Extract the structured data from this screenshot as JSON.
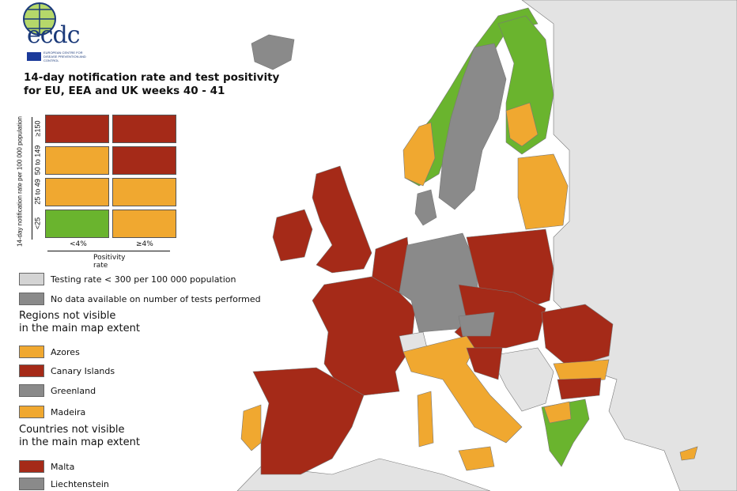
{
  "logo": {
    "text": "ecdc",
    "subtitle": "EUROPEAN CENTRE FOR DISEASE PREVENTION AND CONTROL"
  },
  "title_line1": "14-day notification rate and test positivity",
  "title_line2": "for EU, EEA and UK weeks 40 - 41",
  "matrix": {
    "y_axis_label": "14-day notification rate per 100 000 population",
    "x_axis_label": "Positivity rate",
    "rows": [
      "≥150",
      "50 to 149",
      "25 to 49",
      "<25"
    ],
    "cols": [
      "<4%",
      "≥4%"
    ],
    "colors": [
      [
        "#a52a18",
        "#a52a18"
      ],
      [
        "#f0a830",
        "#a52a18"
      ],
      [
        "#f0a830",
        "#f0a830"
      ],
      [
        "#6ab42e",
        "#f0a830"
      ]
    ]
  },
  "legend": {
    "testing_low": "Testing rate < 300 per 100 000 population",
    "no_data": "No data available on number of tests performed"
  },
  "regions_heading_1": "Regions not visible",
  "regions_heading_2": "in the main map extent",
  "regions": [
    {
      "name": "Azores",
      "color": "#f0a830"
    },
    {
      "name": "Canary Islands",
      "color": "#a52a18"
    },
    {
      "name": "Greenland",
      "color": "#8a8a8a"
    },
    {
      "name": "Madeira",
      "color": "#f0a830"
    }
  ],
  "countries_heading_1": "Countries not visible",
  "countries_heading_2": "in the main map extent",
  "countries": [
    {
      "name": "Malta",
      "color": "#a52a18"
    },
    {
      "name": "Liechtenstein",
      "color": "#8a8a8a"
    }
  ],
  "colors": {
    "red": "#a52a18",
    "orange": "#f0a830",
    "green": "#6ab42e",
    "grey": "#8a8a8a",
    "light_grey": "#e3e3e3"
  }
}
